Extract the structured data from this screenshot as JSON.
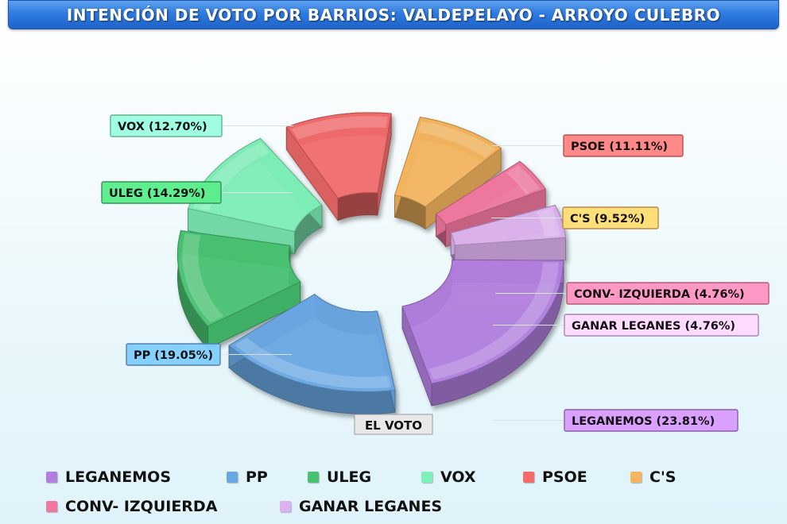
{
  "title": "INTENCIÓN DE VOTO POR BARRIOS: VALDEPELAYO - ARROYO CULEBRO",
  "watermark": "EL VOTO",
  "chart_data": {
    "type": "pie",
    "variant": "3d-exploded-donut",
    "title": "INTENCIÓN DE VOTO POR BARRIOS: VALDEPELAYO - ARROYO CULEBRO",
    "series": [
      {
        "name": "LEGANEMOS",
        "value": 23.81,
        "label": "LEGANEMOS  (23.81%)",
        "color": "#b27fe0"
      },
      {
        "name": "PP",
        "value": 19.05,
        "label": "PP (19.05%)",
        "color": "#6aa8e4"
      },
      {
        "name": "ULEG",
        "value": 14.29,
        "label": "ULEG  (14.29%)",
        "color": "#48c271"
      },
      {
        "name": "VOX",
        "value": 12.7,
        "label": "VOX  (12.70%)",
        "color": "#7ff0b8"
      },
      {
        "name": "PSOE",
        "value": 11.11,
        "label": "PSOE (11.11%)",
        "color": "#f36b6b"
      },
      {
        "name": "C'S",
        "value": 9.52,
        "label": "C'S  (9.52%)",
        "color": "#f5b55e"
      },
      {
        "name": "CONV- IZQUIERDA",
        "value": 4.76,
        "label": "CONV- IZQUIERDA (4.76%)",
        "color": "#f0789f"
      },
      {
        "name": "GANAR LEGANES",
        "value": 4.76,
        "label": "GANAR LEGANES (4.76%)",
        "color": "#dcb2ee"
      }
    ],
    "legend_position": "bottom"
  },
  "legend": {
    "row1": [
      "LEGANEMOS",
      "PP",
      "ULEG",
      "VOX",
      "PSOE",
      "C'S"
    ],
    "row2": [
      "CONV- IZQUIERDA",
      "GANAR LEGANES"
    ]
  }
}
